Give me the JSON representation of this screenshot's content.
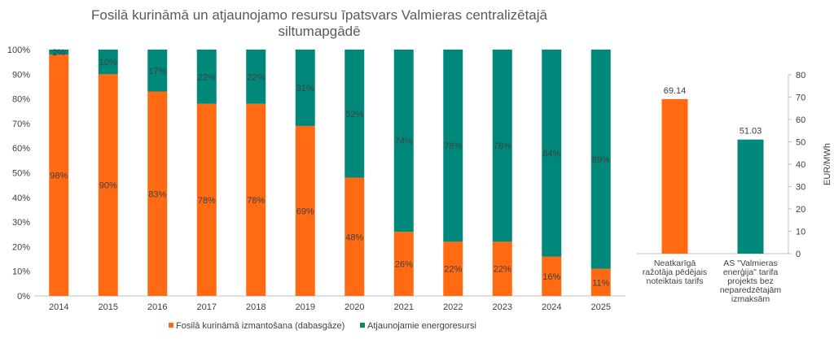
{
  "colors": {
    "fossil": "#FF6A13",
    "renewable": "#00897B",
    "axis": "#BFBFBF",
    "grid": "#D9D9D9",
    "text": "#404040"
  },
  "chart_data": [
    {
      "type": "bar",
      "stacked": true,
      "title": "Fosilā kurināmā un atjaunojamo resursu īpatsvars Valmieras centralizētajā siltumapgādē",
      "title_lines": [
        "Fosilā kurināmā un atjaunojamo resursu īpatsvars Valmieras centralizētajā",
        "siltumapgādē"
      ],
      "categories": [
        "2014",
        "2015",
        "2016",
        "2017",
        "2018",
        "2019",
        "2020",
        "2021",
        "2022",
        "2023",
        "2024",
        "2025"
      ],
      "series": [
        {
          "name": "Fosilā kurināmā izmantošana (dabasgāze)",
          "values": [
            98,
            90,
            83,
            78,
            78,
            69,
            48,
            26,
            22,
            22,
            16,
            11
          ],
          "labels": [
            "98%",
            "90%",
            "83%",
            "78%",
            "78%",
            "69%",
            "48%",
            "26%",
            "22%",
            "22%",
            "16%",
            "11%"
          ]
        },
        {
          "name": "Atjaunojamie energoresursi",
          "values": [
            2,
            10,
            17,
            22,
            22,
            31,
            52,
            74,
            78,
            78,
            84,
            89
          ],
          "labels": [
            "2%",
            "10%",
            "17%",
            "22%",
            "22%",
            "31%",
            "52%",
            "74%",
            "78%",
            "78%",
            "84%",
            "89%"
          ]
        }
      ],
      "ylim": [
        0,
        100
      ],
      "yticks": [
        "0%",
        "10%",
        "20%",
        "30%",
        "40%",
        "50%",
        "60%",
        "70%",
        "80%",
        "90%",
        "100%"
      ],
      "grid": false,
      "legend": "bottom"
    },
    {
      "type": "bar",
      "categories": [
        [
          "Neatkarīgā",
          "ražotāja pēdējais",
          "noteiktais tarifs"
        ],
        [
          "AS \"Valmieras",
          "enerģija\" tarifa",
          "projekts bez",
          "neparedzētajām",
          "izmaksām"
        ]
      ],
      "values": [
        69.14,
        51.03
      ],
      "value_labels": [
        "69.14",
        "51.03"
      ],
      "ylabel": "EUR/MWh",
      "ylim": [
        0,
        80
      ],
      "yticks": [
        "0",
        "10",
        "20",
        "30",
        "40",
        "50",
        "60",
        "70",
        "80"
      ],
      "y_axis_side": "right",
      "grid": false
    }
  ]
}
